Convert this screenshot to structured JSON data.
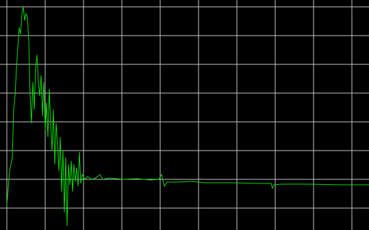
{
  "chart_data": {
    "type": "line",
    "x": [
      10,
      14,
      18,
      20,
      22,
      24,
      26,
      28,
      30,
      32,
      34,
      36,
      38,
      40,
      42,
      44,
      46,
      48,
      50,
      52,
      54,
      56,
      58,
      60,
      62,
      64,
      66,
      68,
      70,
      72,
      74,
      76,
      78,
      80,
      82,
      84,
      86,
      88,
      90,
      92,
      94,
      96,
      98,
      100,
      102,
      104,
      106,
      108,
      110,
      112,
      114,
      116,
      118,
      120,
      124,
      128,
      134,
      140,
      146,
      150,
      160,
      180,
      200,
      220,
      232,
      236,
      238,
      240,
      244,
      260,
      280,
      300,
      340,
      380,
      396,
      398,
      400,
      410,
      450,
      500,
      539
    ],
    "series": [
      {
        "color": "#00e000",
        "values": [
          36,
          86,
          106,
          176,
          196,
          236,
          266,
          296,
          286,
          316,
          326,
          306,
          316,
          311,
          276,
          196,
          156,
          216,
          176,
          236,
          256,
          216,
          196,
          226,
          166,
          216,
          146,
          186,
          136,
          206,
          156,
          116,
          176,
          96,
          156,
          126,
          86,
          136,
          56,
          116,
          26,
          106,
          6,
          96,
          66,
          101,
          56,
          96,
          71,
          91,
          64,
          114,
          68,
          81,
          74,
          78,
          74,
          76,
          81,
          74,
          76,
          74,
          75,
          73,
          74,
          81,
          72,
          64,
          70,
          70,
          71,
          69,
          69,
          68,
          68,
          61,
          66,
          67,
          67,
          66,
          66
        ]
      }
    ],
    "xlim": [
      0,
      539
    ],
    "xticks": [
      10,
      66,
      122,
      178,
      234,
      290,
      346,
      402,
      458,
      514
    ],
    "ylim": [
      0,
      336
    ],
    "yticks": [
      32,
      74,
      116,
      158,
      200,
      242,
      284,
      326
    ],
    "grid": true,
    "grid_color": "#c8c8c8",
    "background": "#000000"
  }
}
